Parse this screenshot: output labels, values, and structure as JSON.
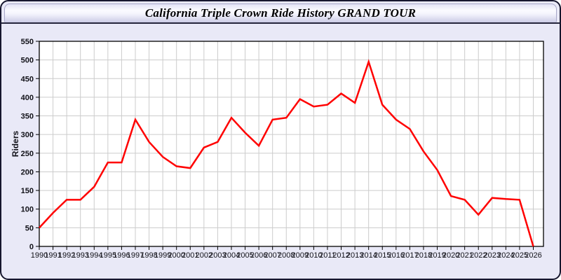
{
  "window": {
    "title": "California Triple Crown Ride History GRAND TOUR"
  },
  "chart_data": {
    "type": "line",
    "title": "California Triple Crown Ride History GRAND TOUR",
    "xlabel": "",
    "ylabel": "Riders",
    "ylim": [
      0,
      550
    ],
    "ytick_step": 50,
    "grid": true,
    "legend_position": "none",
    "x": [
      1990,
      1991,
      1992,
      1993,
      1994,
      1995,
      1996,
      1997,
      1998,
      1999,
      2000,
      2001,
      2002,
      2003,
      2004,
      2005,
      2006,
      2007,
      2008,
      2009,
      2010,
      2011,
      2012,
      2013,
      2014,
      2015,
      2016,
      2017,
      2018,
      2019,
      2020,
      2021,
      2022,
      2023,
      2024,
      2025,
      2026
    ],
    "series": [
      {
        "name": "Riders",
        "values": [
          50,
          90,
          125,
          125,
          160,
          225,
          225,
          340,
          280,
          240,
          215,
          210,
          265,
          280,
          345,
          305,
          270,
          340,
          345,
          395,
          375,
          380,
          410,
          385,
          495,
          380,
          340,
          315,
          255,
          205,
          135,
          125,
          85,
          130,
          127,
          125,
          0
        ]
      }
    ]
  },
  "colors": {
    "panel_background": "#e9e9f7",
    "panel_border": "#16162e",
    "plot_background": "#ffffff",
    "gridline": "#cccccc",
    "axis": "#000000",
    "series_line": "#ff0000",
    "tick_label": "#111118",
    "title_text": "#000000"
  }
}
